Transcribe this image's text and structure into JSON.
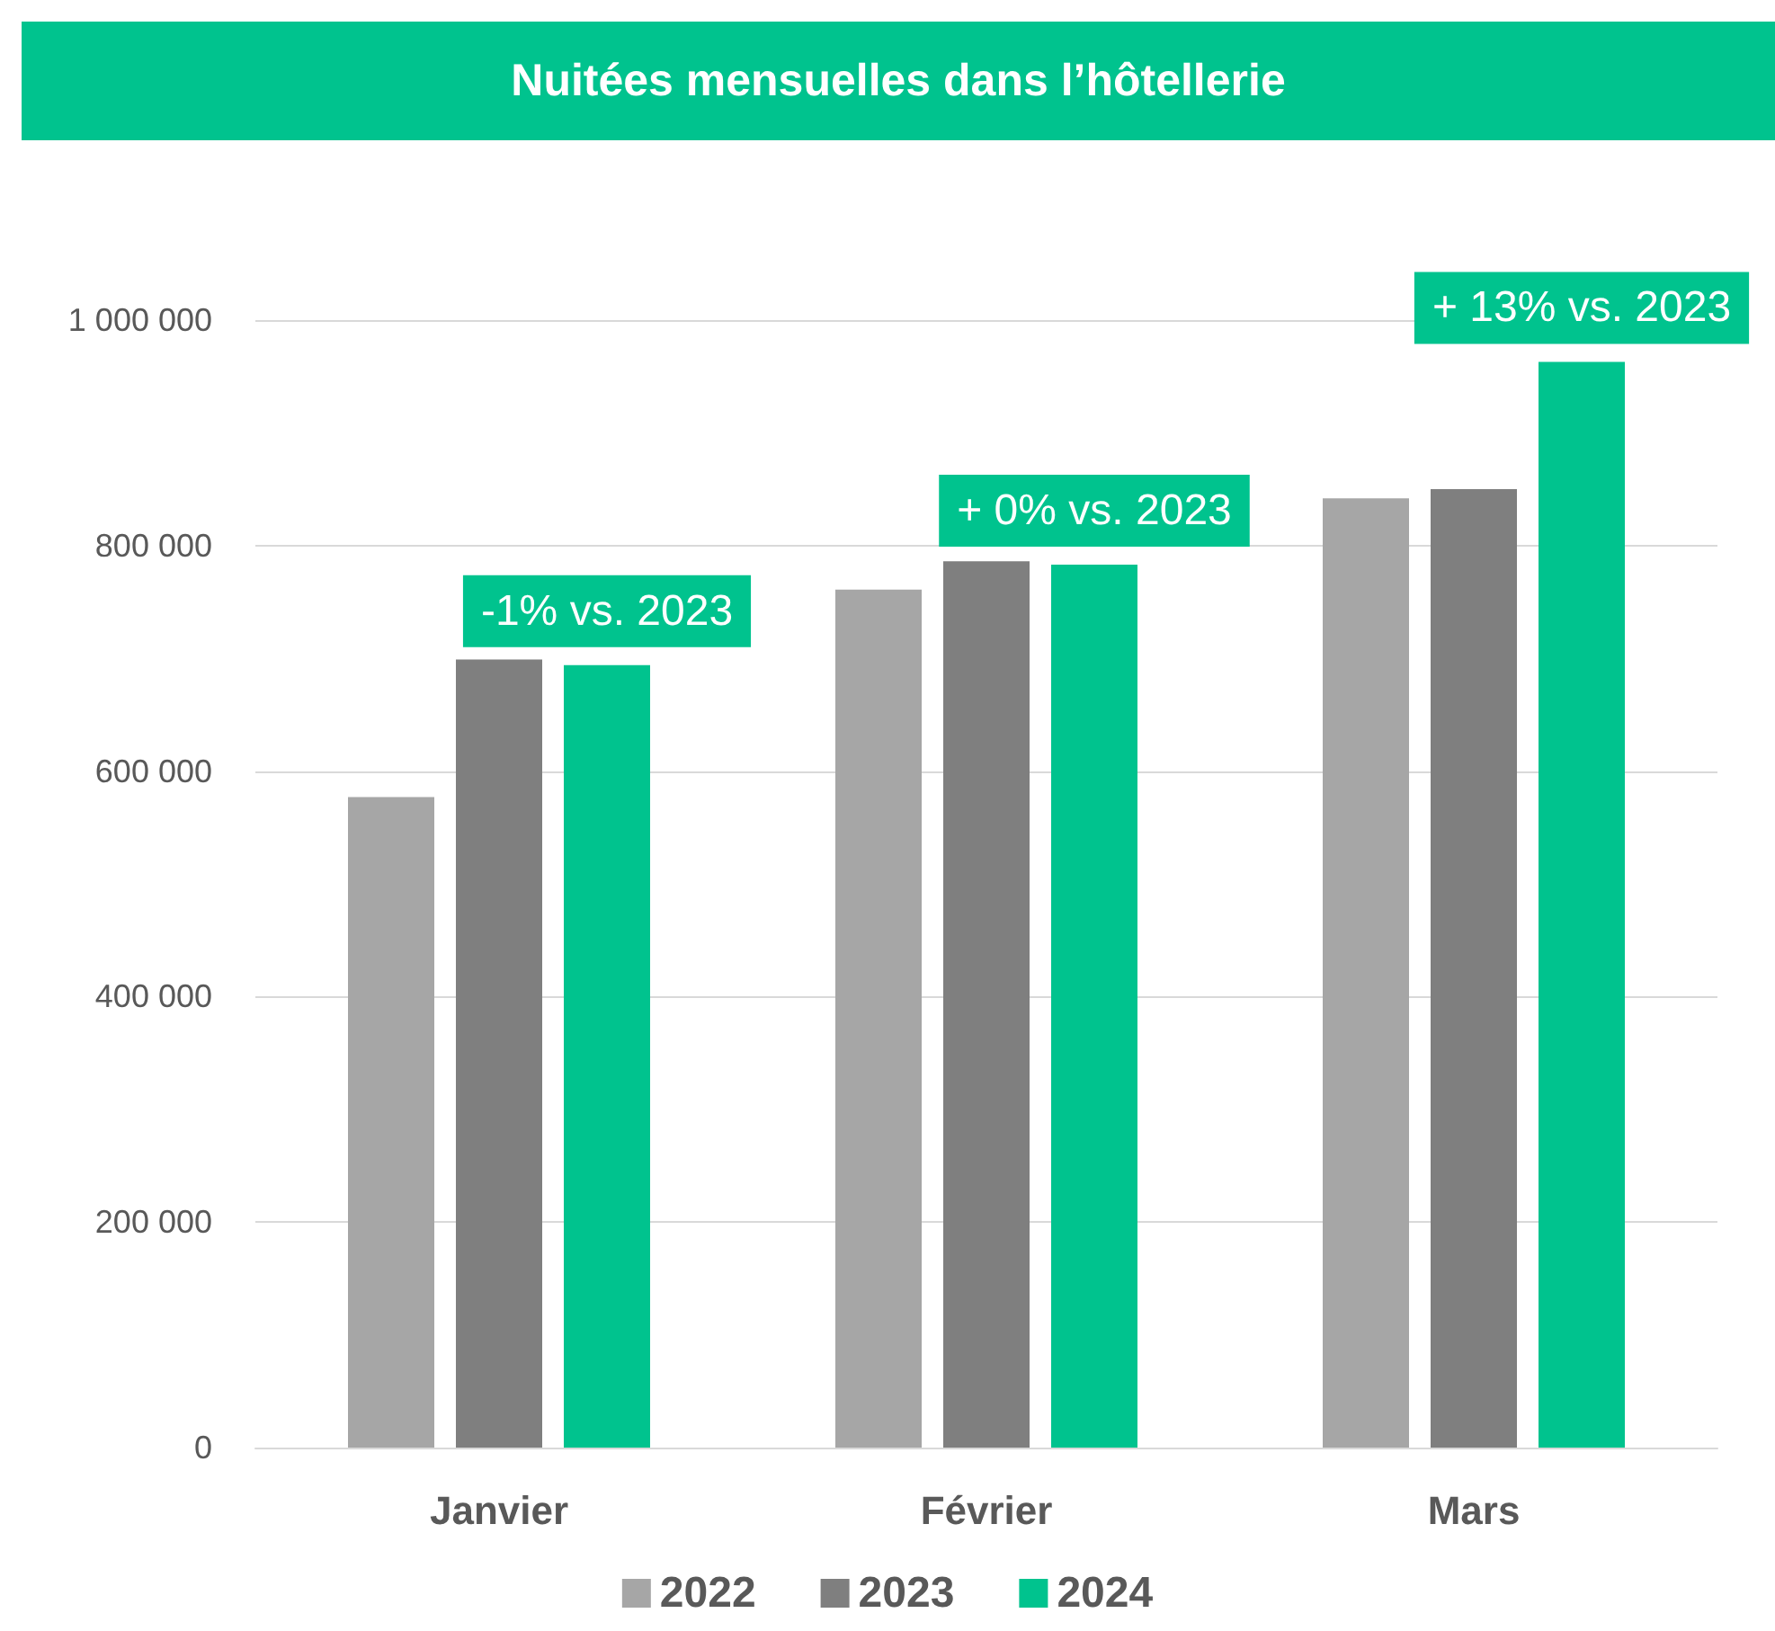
{
  "chart_data": {
    "type": "bar",
    "title": "Nuitées mensuelles dans l’hôtellerie",
    "categories": [
      "Janvier",
      "Février",
      "Mars"
    ],
    "series": [
      {
        "name": "2022",
        "color": "#a6a6a6",
        "values": [
          577000,
          761000,
          842000
        ]
      },
      {
        "name": "2023",
        "color": "#7f7f7f",
        "values": [
          699000,
          786000,
          850000
        ]
      },
      {
        "name": "2024",
        "color": "#00c38e",
        "values": [
          694000,
          783000,
          963000
        ]
      }
    ],
    "ylim": [
      0,
      1000000
    ],
    "yticks": [
      {
        "value": 0,
        "label": "0"
      },
      {
        "value": 200000,
        "label": "200 000"
      },
      {
        "value": 400000,
        "label": "400 000"
      },
      {
        "value": 600000,
        "label": "600 000"
      },
      {
        "value": 800000,
        "label": "800 000"
      },
      {
        "value": 1000000,
        "label": "1 000 000"
      }
    ],
    "annotations": [
      "-1% vs. 2023",
      "+ 0% vs. 2023",
      "+ 13% vs. 2023"
    ],
    "grid": "y",
    "legend": "bottom"
  }
}
